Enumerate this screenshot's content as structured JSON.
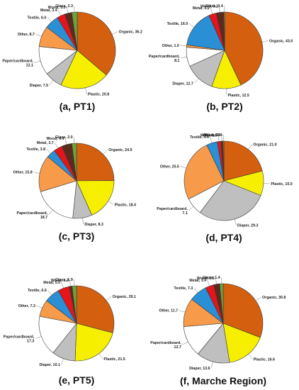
{
  "palette": {
    "Organic": "#d35f0f",
    "Plastic": "#f6f000",
    "Diaper": "#bfbfbf",
    "Paper/cardboard": "#ffffff",
    "Other": "#f79a4a",
    "Textile": "#2b8fd6",
    "Metal": "#e6141b",
    "Wood": "#5b2a1c",
    "Glass": "#6aa43a"
  },
  "chart_data": [
    {
      "type": "pie",
      "caption": "(a, PT1)",
      "slices": [
        {
          "name": "Organic",
          "label": "Organic, 36.2",
          "value": 36.2
        },
        {
          "name": "Plastic",
          "label": "Plastic, 20.8",
          "value": 20.8
        },
        {
          "name": "Diaper",
          "label": "Diaper, 7.5",
          "value": 7.5
        },
        {
          "name": "Paper/cardboard",
          "label": "Paper/cardboard,\n12.1",
          "value": 12.1
        },
        {
          "name": "Other",
          "label": "Other, 8.7",
          "value": 8.7
        },
        {
          "name": "Textile",
          "label": "Textile, 6.0",
          "value": 6.0
        },
        {
          "name": "Metal",
          "label": "Metal, 3.4",
          "value": 3.4
        },
        {
          "name": "Wood",
          "label": "Wood, 3.0",
          "value": 3.0
        },
        {
          "name": "Glass",
          "label": "Glass, 2.3",
          "value": 2.3
        }
      ]
    },
    {
      "type": "pie",
      "caption": "(b, PT2)",
      "slices": [
        {
          "name": "Organic",
          "label": "Organic, 43.0",
          "value": 43.0
        },
        {
          "name": "Plastic",
          "label": "Plastic, 12.5",
          "value": 12.5
        },
        {
          "name": "Diaper",
          "label": "Diaper, 12.7",
          "value": 12.7
        },
        {
          "name": "Paper/cardboard",
          "label": "Paper/cardboard,\n8.1",
          "value": 8.1
        },
        {
          "name": "Other",
          "label": "Other, 1.0",
          "value": 1.0
        },
        {
          "name": "Textile",
          "label": "Textile, 16.0",
          "value": 16.0
        },
        {
          "name": "Metal",
          "label": "Metal, 3.2",
          "value": 3.2
        },
        {
          "name": "Wood",
          "label": "Wood, 3.1",
          "value": 3.1
        },
        {
          "name": "Glass",
          "label": "Glass, 0.4",
          "value": 0.4
        }
      ]
    },
    {
      "type": "pie",
      "caption": "(c, PT3)",
      "slices": [
        {
          "name": "Organic",
          "label": "Organic, 24.9",
          "value": 24.9
        },
        {
          "name": "Plastic",
          "label": "Plastic, 18.4",
          "value": 18.4
        },
        {
          "name": "Diaper",
          "label": "Diaper, 8.3",
          "value": 8.3
        },
        {
          "name": "Paper/cardboard",
          "label": "Paper/cardboard,\n18.7",
          "value": 18.7
        },
        {
          "name": "Other",
          "label": "Other, 15.8",
          "value": 15.8
        },
        {
          "name": "Textile",
          "label": "Textile, 3.8",
          "value": 3.8
        },
        {
          "name": "Metal",
          "label": "Metal, 3.7",
          "value": 3.7
        },
        {
          "name": "Wood",
          "label": "Wood, 4.4",
          "value": 4.4
        },
        {
          "name": "Glass",
          "label": "Glass, 2.0",
          "value": 2.0
        }
      ]
    },
    {
      "type": "pie",
      "caption": "(d, PT4)",
      "slices": [
        {
          "name": "Organic",
          "label": "Organic, 21.0",
          "value": 21.0
        },
        {
          "name": "Plastic",
          "label": "Plastic, 10.0",
          "value": 10.0
        },
        {
          "name": "Diaper",
          "label": "Diaper, 29.3",
          "value": 29.3
        },
        {
          "name": "Paper/cardboard",
          "label": "Paper/cardboard,\n7.1",
          "value": 7.1
        },
        {
          "name": "Other",
          "label": "Other, 25.5",
          "value": 25.5
        },
        {
          "name": "Textile",
          "label": "Textile, 4.4",
          "value": 4.4
        },
        {
          "name": "Metal",
          "label": "Metal, 1.5",
          "value": 1.5
        },
        {
          "name": "Wood",
          "label": "Wood, 0.8",
          "value": 0.8
        },
        {
          "name": "Glass",
          "label": "Glass, 0.4",
          "value": 0.4
        }
      ]
    },
    {
      "type": "pie",
      "caption": "(e, PT5)",
      "slices": [
        {
          "name": "Organic",
          "label": "Organic, 29.1",
          "value": 29.1
        },
        {
          "name": "Plastic",
          "label": "Plastic, 21.5",
          "value": 21.5
        },
        {
          "name": "Diaper",
          "label": "Diaper, 10.1",
          "value": 10.1
        },
        {
          "name": "Paper/cardboard",
          "label": "Paper/cardboard,\n17.3",
          "value": 17.3
        },
        {
          "name": "Other",
          "label": "Other, 7.3",
          "value": 7.3
        },
        {
          "name": "Textile",
          "label": "Textile, 6.6",
          "value": 6.6
        },
        {
          "name": "Metal",
          "label": "Metal, 5.0",
          "value": 5.0
        },
        {
          "name": "Wood",
          "label": "Wood, 1.2",
          "value": 1.2
        },
        {
          "name": "Glass",
          "label": "Glass, 1.9",
          "value": 1.9
        }
      ]
    },
    {
      "type": "pie",
      "caption": "(f, Marche Region)",
      "slices": [
        {
          "name": "Organic",
          "label": "Organic, 30.8",
          "value": 30.8
        },
        {
          "name": "Plastic",
          "label": "Plastic, 16.6",
          "value": 16.6
        },
        {
          "name": "Diaper",
          "label": "Diaper, 13.6",
          "value": 13.6
        },
        {
          "name": "Paper/cardboard",
          "label": "Paper/cardboard,\n12.7",
          "value": 12.7
        },
        {
          "name": "Other",
          "label": "Other, 11.7",
          "value": 11.7
        },
        {
          "name": "Textile",
          "label": "Textile, 7.3",
          "value": 7.3
        },
        {
          "name": "Metal",
          "label": "Metal, 3.4",
          "value": 3.4
        },
        {
          "name": "Wood",
          "label": "Wood, 2.5",
          "value": 2.5
        },
        {
          "name": "Glass",
          "label": "Glass, 1.4",
          "value": 1.4
        }
      ]
    }
  ]
}
